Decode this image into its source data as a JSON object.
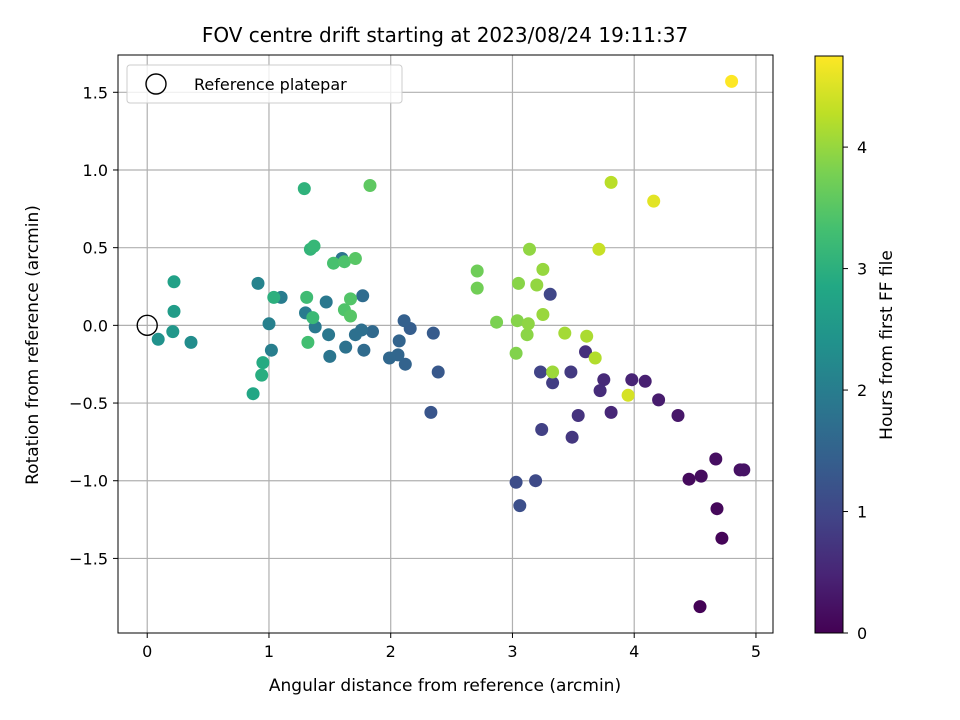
{
  "chart_data": {
    "type": "scatter",
    "title": "FOV centre drift starting at 2023/08/24 19:11:37",
    "xlabel": "Angular distance from reference (arcmin)",
    "ylabel": "Rotation from reference (arcmin)",
    "xlim": [
      -0.24,
      5.14
    ],
    "ylim": [
      -1.98,
      1.74
    ],
    "xticks": [
      0,
      1,
      2,
      3,
      4,
      5
    ],
    "xtick_labels": [
      "0",
      "1",
      "2",
      "3",
      "4",
      "5"
    ],
    "yticks": [
      -1.5,
      -1.0,
      -0.5,
      0.0,
      0.5,
      1.0,
      1.5
    ],
    "ytick_labels": [
      "−1.5",
      "−1.0",
      "−0.5",
      "0.0",
      "0.5",
      "1.0",
      "1.5"
    ],
    "grid": true,
    "legend": {
      "placement": "top-left",
      "label": "Reference platepar"
    },
    "reference_point": {
      "x": 0,
      "y": 0
    },
    "colorbar": {
      "label": "Hours from first FF file",
      "range": [
        0,
        4.75
      ],
      "ticks": [
        0,
        1,
        2,
        3,
        4
      ],
      "tick_labels": [
        "0",
        "1",
        "2",
        "3",
        "4"
      ],
      "colormap": "viridis"
    },
    "points": [
      {
        "x": 4.54,
        "y": -1.81,
        "c": 0.03
      },
      {
        "x": 4.72,
        "y": -1.37,
        "c": 0.06
      },
      {
        "x": 4.68,
        "y": -1.18,
        "c": 0.09
      },
      {
        "x": 4.45,
        "y": -0.99,
        "c": 0.12
      },
      {
        "x": 4.55,
        "y": -0.97,
        "c": 0.15
      },
      {
        "x": 4.67,
        "y": -0.86,
        "c": 0.18
      },
      {
        "x": 4.87,
        "y": -0.93,
        "c": 0.21
      },
      {
        "x": 4.9,
        "y": -0.93,
        "c": 0.24
      },
      {
        "x": 4.36,
        "y": -0.58,
        "c": 0.3
      },
      {
        "x": 4.2,
        "y": -0.48,
        "c": 0.36
      },
      {
        "x": 4.09,
        "y": -0.36,
        "c": 0.42
      },
      {
        "x": 3.98,
        "y": -0.35,
        "c": 0.48
      },
      {
        "x": 3.81,
        "y": -0.56,
        "c": 0.52
      },
      {
        "x": 3.75,
        "y": -0.35,
        "c": 0.56
      },
      {
        "x": 3.72,
        "y": -0.42,
        "c": 0.6
      },
      {
        "x": 3.6,
        "y": -0.17,
        "c": 0.65
      },
      {
        "x": 3.54,
        "y": -0.58,
        "c": 0.7
      },
      {
        "x": 3.49,
        "y": -0.72,
        "c": 0.75
      },
      {
        "x": 3.48,
        "y": -0.3,
        "c": 0.8
      },
      {
        "x": 3.33,
        "y": -0.37,
        "c": 0.85
      },
      {
        "x": 3.24,
        "y": -0.67,
        "c": 0.9
      },
      {
        "x": 3.23,
        "y": -0.3,
        "c": 0.95
      },
      {
        "x": 3.31,
        "y": 0.2,
        "c": 1.0
      },
      {
        "x": 3.19,
        "y": -1.0,
        "c": 1.05
      },
      {
        "x": 3.03,
        "y": -1.01,
        "c": 1.1
      },
      {
        "x": 3.06,
        "y": -1.16,
        "c": 1.15
      },
      {
        "x": 2.33,
        "y": -0.56,
        "c": 1.25
      },
      {
        "x": 2.39,
        "y": -0.3,
        "c": 1.3
      },
      {
        "x": 2.35,
        "y": -0.05,
        "c": 1.35
      },
      {
        "x": 2.16,
        "y": -0.02,
        "c": 1.4
      },
      {
        "x": 2.11,
        "y": 0.03,
        "c": 1.45
      },
      {
        "x": 2.12,
        "y": -0.25,
        "c": 1.5
      },
      {
        "x": 2.07,
        "y": -0.1,
        "c": 1.52
      },
      {
        "x": 2.06,
        "y": -0.19,
        "c": 1.55
      },
      {
        "x": 1.99,
        "y": -0.21,
        "c": 1.58
      },
      {
        "x": 1.85,
        "y": -0.04,
        "c": 1.62
      },
      {
        "x": 1.78,
        "y": -0.16,
        "c": 1.65
      },
      {
        "x": 1.77,
        "y": 0.19,
        "c": 1.68
      },
      {
        "x": 1.76,
        "y": -0.03,
        "c": 1.72
      },
      {
        "x": 1.71,
        "y": -0.06,
        "c": 1.75
      },
      {
        "x": 1.63,
        "y": -0.14,
        "c": 1.78
      },
      {
        "x": 1.6,
        "y": 0.43,
        "c": 1.82
      },
      {
        "x": 1.5,
        "y": -0.2,
        "c": 1.85
      },
      {
        "x": 1.49,
        "y": -0.06,
        "c": 1.88
      },
      {
        "x": 1.47,
        "y": 0.15,
        "c": 1.9
      },
      {
        "x": 1.38,
        "y": -0.01,
        "c": 1.92
      },
      {
        "x": 1.3,
        "y": 0.08,
        "c": 1.95
      },
      {
        "x": 1.1,
        "y": 0.18,
        "c": 1.98
      },
      {
        "x": 1.02,
        "y": -0.16,
        "c": 2.02
      },
      {
        "x": 1.0,
        "y": 0.01,
        "c": 2.06
      },
      {
        "x": 0.91,
        "y": 0.27,
        "c": 2.1
      },
      {
        "x": 0.36,
        "y": -0.11,
        "c": 2.3
      },
      {
        "x": 0.09,
        "y": -0.09,
        "c": 2.4
      },
      {
        "x": 0.21,
        "y": -0.04,
        "c": 2.5
      },
      {
        "x": 0.22,
        "y": 0.09,
        "c": 2.6
      },
      {
        "x": 0.22,
        "y": 0.28,
        "c": 2.7
      },
      {
        "x": 0.87,
        "y": -0.44,
        "c": 2.8
      },
      {
        "x": 0.95,
        "y": -0.24,
        "c": 2.9
      },
      {
        "x": 0.94,
        "y": -0.32,
        "c": 2.95
      },
      {
        "x": 1.04,
        "y": 0.18,
        "c": 3.0
      },
      {
        "x": 1.29,
        "y": 0.88,
        "c": 3.05
      },
      {
        "x": 1.34,
        "y": 0.49,
        "c": 3.1
      },
      {
        "x": 1.37,
        "y": 0.51,
        "c": 3.15
      },
      {
        "x": 1.36,
        "y": 0.05,
        "c": 3.2
      },
      {
        "x": 1.31,
        "y": 0.18,
        "c": 3.25
      },
      {
        "x": 1.32,
        "y": -0.11,
        "c": 3.3
      },
      {
        "x": 1.53,
        "y": 0.4,
        "c": 3.35
      },
      {
        "x": 1.62,
        "y": 0.41,
        "c": 3.4
      },
      {
        "x": 1.62,
        "y": 0.1,
        "c": 3.42
      },
      {
        "x": 1.67,
        "y": 0.17,
        "c": 3.45
      },
      {
        "x": 1.67,
        "y": 0.06,
        "c": 3.48
      },
      {
        "x": 1.71,
        "y": 0.43,
        "c": 3.5
      },
      {
        "x": 1.83,
        "y": 0.9,
        "c": 3.55
      },
      {
        "x": 2.71,
        "y": 0.35,
        "c": 3.7
      },
      {
        "x": 2.71,
        "y": 0.24,
        "c": 3.72
      },
      {
        "x": 2.87,
        "y": 0.02,
        "c": 3.8
      },
      {
        "x": 3.03,
        "y": -0.18,
        "c": 3.85
      },
      {
        "x": 3.04,
        "y": 0.03,
        "c": 3.88
      },
      {
        "x": 3.05,
        "y": 0.27,
        "c": 3.9
      },
      {
        "x": 3.12,
        "y": -0.06,
        "c": 3.92
      },
      {
        "x": 3.13,
        "y": 0.01,
        "c": 3.94
      },
      {
        "x": 3.14,
        "y": 0.49,
        "c": 3.96
      },
      {
        "x": 3.2,
        "y": 0.26,
        "c": 3.98
      },
      {
        "x": 3.25,
        "y": 0.36,
        "c": 4.0
      },
      {
        "x": 3.25,
        "y": 0.07,
        "c": 4.02
      },
      {
        "x": 3.33,
        "y": -0.3,
        "c": 4.05
      },
      {
        "x": 3.43,
        "y": -0.05,
        "c": 4.1
      },
      {
        "x": 3.61,
        "y": -0.07,
        "c": 4.15
      },
      {
        "x": 3.68,
        "y": -0.21,
        "c": 4.2
      },
      {
        "x": 3.81,
        "y": 0.92,
        "c": 4.25
      },
      {
        "x": 3.71,
        "y": 0.49,
        "c": 4.35
      },
      {
        "x": 3.95,
        "y": -0.45,
        "c": 4.45
      },
      {
        "x": 4.16,
        "y": 0.8,
        "c": 4.55
      },
      {
        "x": 4.8,
        "y": 1.57,
        "c": 4.75
      }
    ]
  }
}
